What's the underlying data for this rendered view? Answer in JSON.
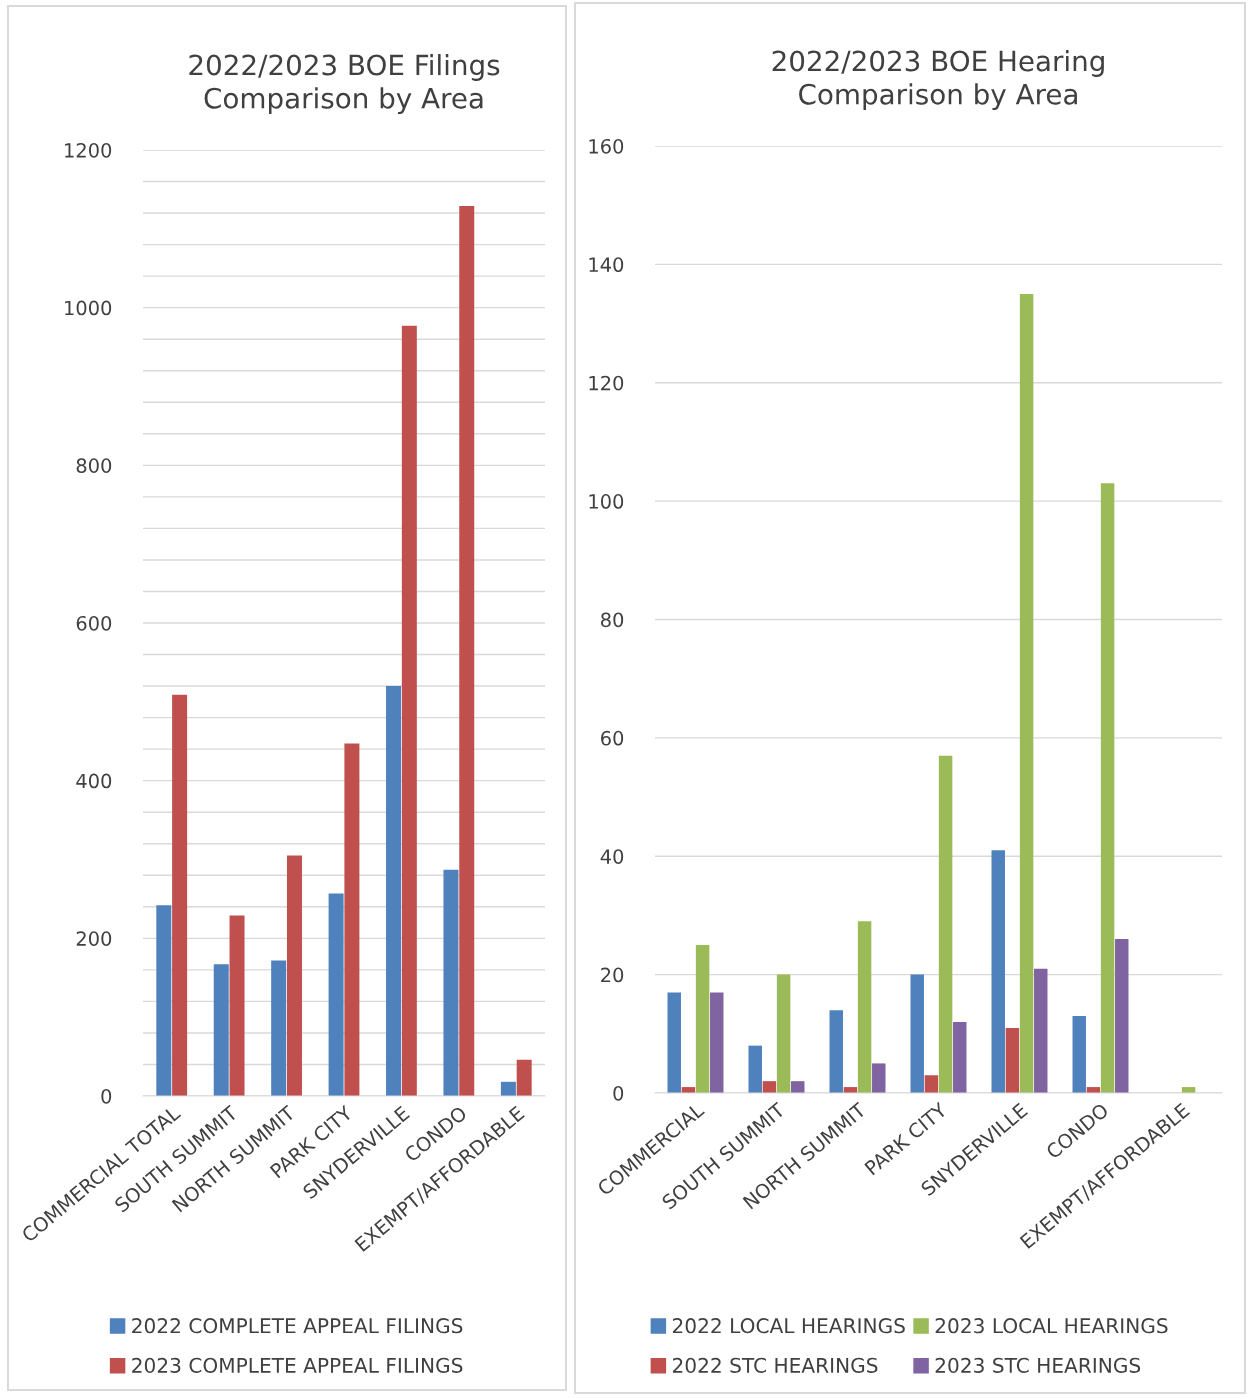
{
  "chart_data": [
    {
      "type": "bar",
      "title": "2022/2023 BOE Filings\nComparison by Area",
      "categories": [
        "COMMERCIAL TOTAL",
        "SOUTH SUMMIT",
        "NORTH SUMMIT",
        "PARK CITY",
        "SNYDERVILLE",
        "CONDO",
        "EXEMPT/AFFORDABLE"
      ],
      "series": [
        {
          "name": "2022 COMPLETE APPEAL FILINGS",
          "color": "#4f81bd",
          "values": [
            242,
            167,
            172,
            257,
            520,
            287,
            18
          ]
        },
        {
          "name": "2023 COMPLETE APPEAL FILINGS",
          "color": "#c0504d",
          "values": [
            509,
            229,
            305,
            447,
            977,
            1129,
            46
          ]
        }
      ],
      "ylim": [
        0,
        1200
      ],
      "yticks": [
        0,
        {
          "value": 40,
          "label": null
        },
        {
          "value": 80,
          "label": null
        },
        {
          "value": 120,
          "label": null
        },
        {
          "value": 160,
          "label": null
        },
        200,
        {
          "value": 240,
          "label": null
        },
        {
          "value": 280,
          "label": null
        },
        {
          "value": 320,
          "label": null
        },
        {
          "value": 360,
          "label": null
        },
        400,
        {
          "value": 440,
          "label": null
        },
        {
          "value": 480,
          "label": null
        },
        {
          "value": 520,
          "label": null
        },
        {
          "value": 560,
          "label": null
        },
        600,
        {
          "value": 640,
          "label": null
        },
        {
          "value": 680,
          "label": null
        },
        {
          "value": 720,
          "label": null
        },
        {
          "value": 760,
          "label": null
        },
        800,
        {
          "value": 840,
          "label": null
        },
        {
          "value": 880,
          "label": null
        },
        {
          "value": 920,
          "label": null
        },
        {
          "value": 960,
          "label": null
        },
        1000,
        {
          "value": 1040,
          "label": null
        },
        {
          "value": 1080,
          "label": null
        },
        {
          "value": 1120,
          "label": null
        },
        {
          "value": 1160,
          "label": null
        },
        1200
      ],
      "grid": "y",
      "legend": "bottom"
    },
    {
      "type": "bar",
      "title": "2022/2023 BOE Hearing\nComparison by Area",
      "categories": [
        "COMMERCIAL",
        "SOUTH SUMMIT",
        "NORTH SUMMIT",
        "PARK CITY",
        "SNYDERVILLE",
        "CONDO",
        "EXEMPT/AFFORDABLE"
      ],
      "series": [
        {
          "name": "2022 LOCAL HEARINGS",
          "color": "#4f81bd",
          "values": [
            17,
            8,
            14,
            20,
            41,
            13,
            0
          ]
        },
        {
          "name": "2022 STC HEARINGS",
          "color": "#c0504d",
          "values": [
            1,
            2,
            1,
            3,
            11,
            1,
            0
          ]
        },
        {
          "name": "2023 LOCAL HEARINGS",
          "color": "#9bbb59",
          "values": [
            25,
            20,
            29,
            57,
            135,
            103,
            1
          ]
        },
        {
          "name": "2023 STC HEARINGS",
          "color": "#8064a2",
          "values": [
            17,
            2,
            5,
            12,
            21,
            26,
            0
          ]
        }
      ],
      "ylim": [
        0,
        160
      ],
      "yticks": [
        0,
        20,
        40,
        60,
        80,
        100,
        120,
        140,
        160
      ],
      "grid": "y",
      "legend": "bottom"
    }
  ]
}
